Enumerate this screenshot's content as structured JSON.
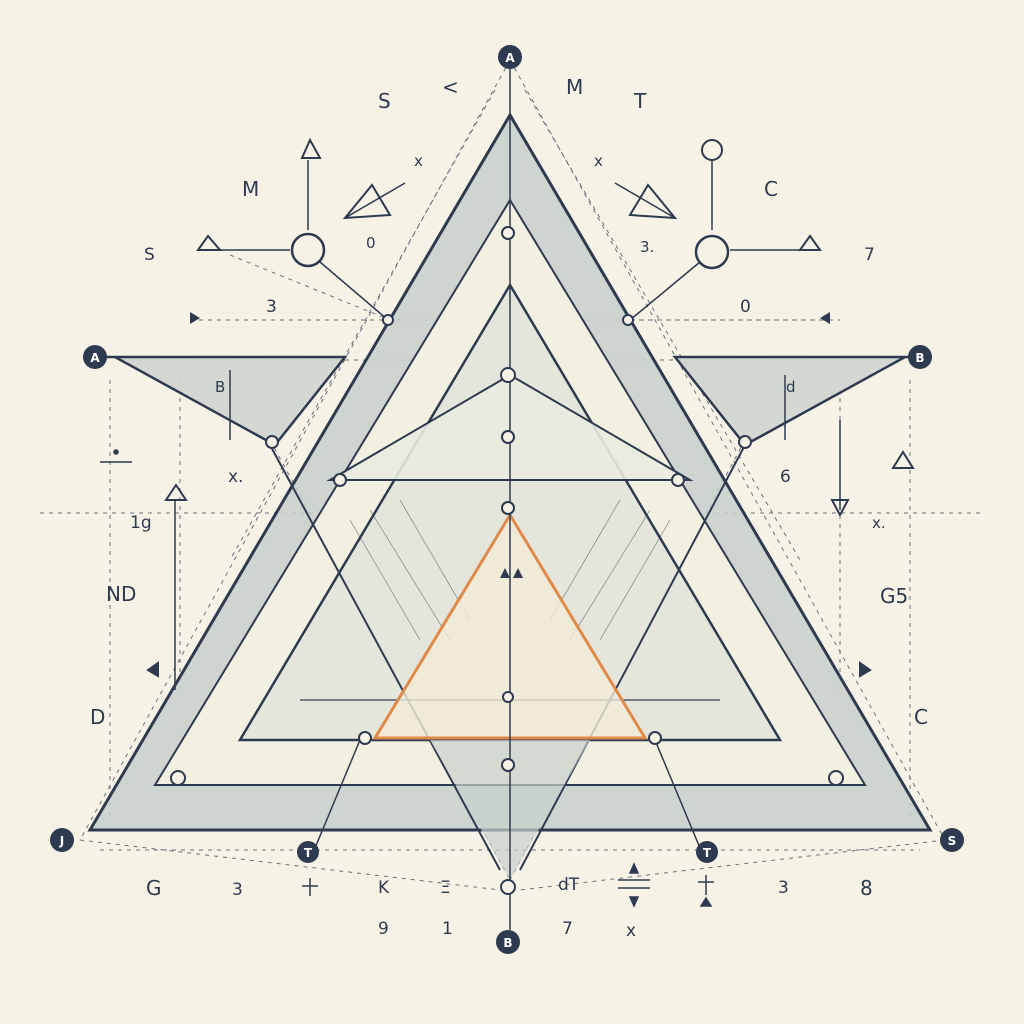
{
  "colors": {
    "background": "#f6f2e6",
    "ink": "#2e3a4f",
    "band_fill": "#c7d0cc",
    "inner_fill": "#f2f0e0",
    "accent": "#e08a4a",
    "badge": "#2e3a4f"
  },
  "badges": {
    "top": "A",
    "left": "A",
    "right": "B",
    "bottom_left": "J",
    "bottom_right": "S",
    "bottom": "B"
  },
  "labels": {
    "top_s": "S",
    "top_lt": "<",
    "top_m": "M",
    "top_t": "T",
    "upper_left_m": "M",
    "upper_right_c": "C",
    "left_s": "S",
    "right_7": "7",
    "cross_left": "x",
    "cross_right": "x",
    "mid_left_0": "0",
    "mid_right_3": "3.",
    "dash_left_3": "3",
    "dash_right_0": "0",
    "left_b": "B",
    "right_d": "d",
    "left_x": "x.",
    "right_6": "6",
    "left_19": "1g",
    "right_x": "x.",
    "left_nd": "ND",
    "right_g5": "G5",
    "left_d": "D",
    "right_c": "C",
    "bottom_g": "G",
    "bottom_3a": "3",
    "bottom_k": "K",
    "bottom_e": "Ξ",
    "bottom_dt": "dT",
    "bottom_3b": "3",
    "bottom_8": "8",
    "lower_9": "9",
    "lower_1": "1",
    "lower_7": "7",
    "lower_x": "x",
    "tag_left_t": "T",
    "tag_right_t": "T"
  }
}
